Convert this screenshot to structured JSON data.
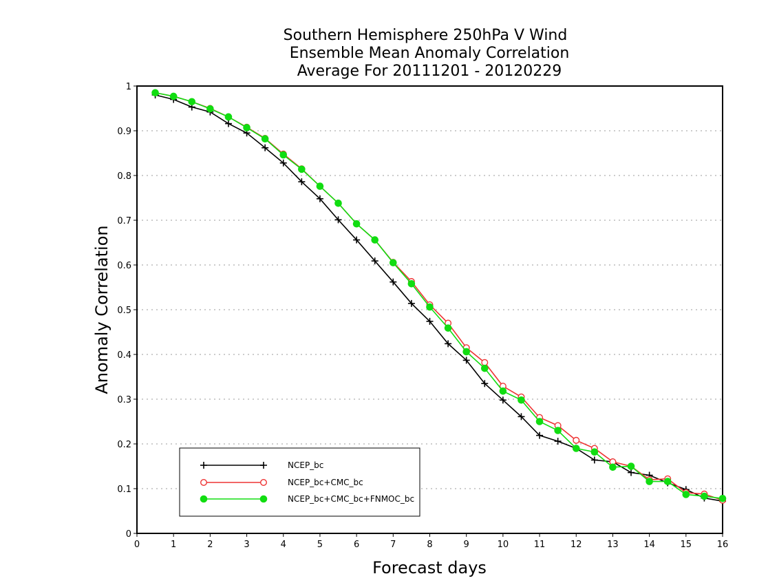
{
  "chart_data": {
    "type": "line",
    "title": [
      "Southern Hemisphere 250hPa V Wind",
      "Ensemble Mean Anomaly Correlation",
      "Average For 20111201 - 20120229"
    ],
    "xlabel": "Forecast days",
    "ylabel": "Anomaly Correlation",
    "xlim": [
      0,
      16
    ],
    "ylim": [
      0,
      1
    ],
    "x_ticks": [
      "0",
      "1",
      "2",
      "3",
      "4",
      "5",
      "6",
      "7",
      "8",
      "9",
      "10",
      "11",
      "12",
      "13",
      "14",
      "15",
      "16"
    ],
    "y_ticks": [
      "0",
      "0.1",
      "0.2",
      "0.3",
      "0.4",
      "0.5",
      "0.6",
      "0.7",
      "0.8",
      "0.9",
      "1"
    ],
    "grid": "horizontal dotted",
    "legend_position": "bottom-left",
    "x": [
      0.5,
      1,
      1.5,
      2,
      2.5,
      3,
      3.5,
      4,
      4.5,
      5,
      5.5,
      6,
      6.5,
      7,
      7.5,
      8,
      8.5,
      9,
      9.5,
      10,
      10.5,
      11,
      11.5,
      12,
      12.5,
      13,
      13.5,
      14,
      14.5,
      15,
      15.5,
      16
    ],
    "series": [
      {
        "name": "NCEP_bc",
        "color": "#000000",
        "marker": "plus",
        "values": [
          0.98,
          0.97,
          0.953,
          0.942,
          0.916,
          0.895,
          0.862,
          0.828,
          0.786,
          0.748,
          0.701,
          0.656,
          0.609,
          0.562,
          0.514,
          0.474,
          0.424,
          0.387,
          0.335,
          0.298,
          0.261,
          0.219,
          0.206,
          0.19,
          0.164,
          0.16,
          0.136,
          0.13,
          0.113,
          0.098,
          0.079,
          0.072
        ]
      },
      {
        "name": "NCEP_bc+CMC_bc",
        "color": "#ee3333",
        "marker": "open-circle",
        "values": [
          0.985,
          0.977,
          0.965,
          0.95,
          0.931,
          0.908,
          0.883,
          0.848,
          0.815,
          0.776,
          0.738,
          0.692,
          0.656,
          0.606,
          0.563,
          0.511,
          0.47,
          0.415,
          0.382,
          0.329,
          0.305,
          0.259,
          0.241,
          0.208,
          0.19,
          0.16,
          0.15,
          0.12,
          0.122,
          0.091,
          0.088,
          0.074
        ]
      },
      {
        "name": "NCEP_bc+CMC_bc+FNMOC_bc",
        "color": "#11dd11",
        "marker": "filled-circle",
        "values": [
          0.985,
          0.977,
          0.965,
          0.949,
          0.931,
          0.907,
          0.882,
          0.846,
          0.814,
          0.776,
          0.738,
          0.692,
          0.656,
          0.605,
          0.558,
          0.506,
          0.459,
          0.406,
          0.369,
          0.318,
          0.298,
          0.25,
          0.23,
          0.19,
          0.182,
          0.148,
          0.15,
          0.116,
          0.116,
          0.087,
          0.083,
          0.078
        ]
      }
    ]
  }
}
